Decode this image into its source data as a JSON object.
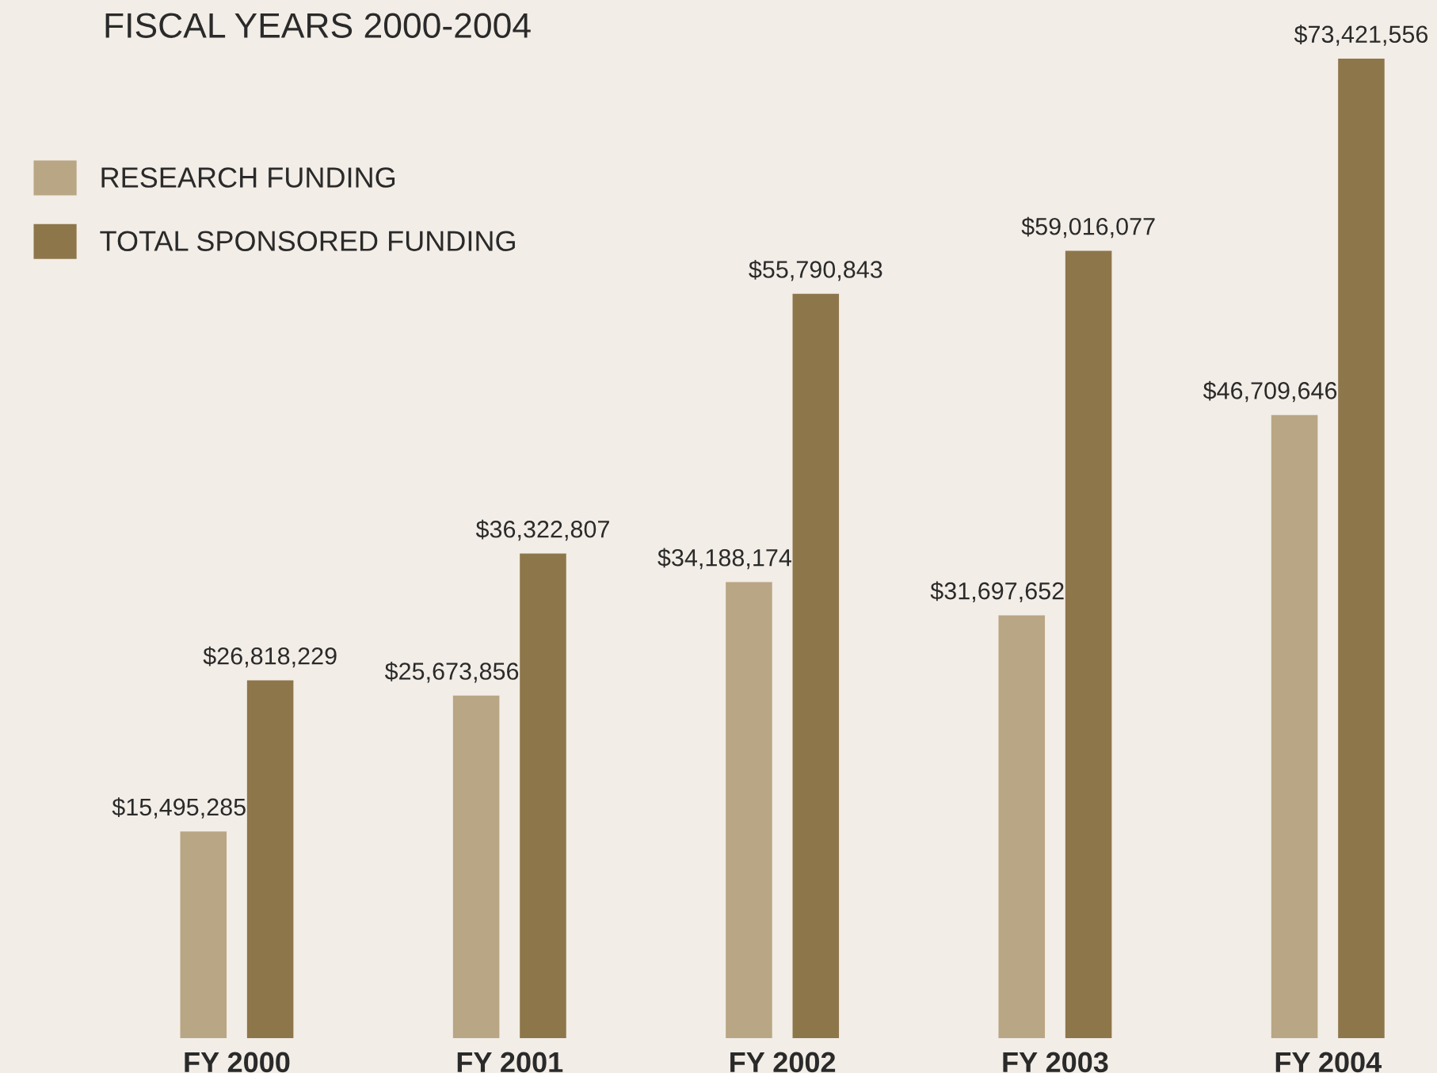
{
  "chart_data": {
    "type": "bar",
    "title": "FISCAL YEARS 2000-2004",
    "categories": [
      "FY 2000",
      "FY 2001",
      "FY 2002",
      "FY 2003",
      "FY 2004"
    ],
    "series": [
      {
        "name": "RESEARCH FUNDING",
        "color": "#b9a684",
        "values": [
          15495285,
          25673856,
          34188174,
          31697652,
          46709646
        ],
        "value_labels": [
          "$15,495,285",
          "$25,673,856",
          "$34,188,174",
          "$31,697,652",
          "$46,709,646"
        ]
      },
      {
        "name": "TOTAL SPONSORED FUNDING",
        "color": "#8e764b",
        "values": [
          26818229,
          36322807,
          55790843,
          59016077,
          73421556
        ],
        "value_labels": [
          "$26,818,229",
          "$36,322,807",
          "$55,790,843",
          "$59,016,077",
          "$73,421,556"
        ]
      }
    ],
    "legend": "top left",
    "grid": false
  }
}
